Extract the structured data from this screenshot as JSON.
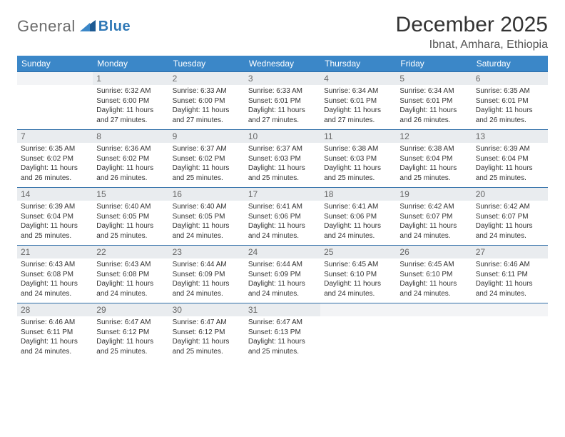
{
  "brand": {
    "part1": "General",
    "part2": "Blue"
  },
  "title": "December 2025",
  "location": "Ibnat, Amhara, Ethiopia",
  "colors": {
    "header_bg": "#3b87c8",
    "header_fg": "#ffffff",
    "daynum_bg": "#e9ecef",
    "row_border": "#2f6ea8",
    "logo_gray": "#6b6b6b",
    "logo_blue": "#2f78b6"
  },
  "day_names": [
    "Sunday",
    "Monday",
    "Tuesday",
    "Wednesday",
    "Thursday",
    "Friday",
    "Saturday"
  ],
  "weeks": [
    [
      {
        "blank": true
      },
      {
        "n": "1",
        "sr": "6:32 AM",
        "ss": "6:00 PM",
        "dl": "11 hours and 27 minutes."
      },
      {
        "n": "2",
        "sr": "6:33 AM",
        "ss": "6:00 PM",
        "dl": "11 hours and 27 minutes."
      },
      {
        "n": "3",
        "sr": "6:33 AM",
        "ss": "6:01 PM",
        "dl": "11 hours and 27 minutes."
      },
      {
        "n": "4",
        "sr": "6:34 AM",
        "ss": "6:01 PM",
        "dl": "11 hours and 27 minutes."
      },
      {
        "n": "5",
        "sr": "6:34 AM",
        "ss": "6:01 PM",
        "dl": "11 hours and 26 minutes."
      },
      {
        "n": "6",
        "sr": "6:35 AM",
        "ss": "6:01 PM",
        "dl": "11 hours and 26 minutes."
      }
    ],
    [
      {
        "n": "7",
        "sr": "6:35 AM",
        "ss": "6:02 PM",
        "dl": "11 hours and 26 minutes."
      },
      {
        "n": "8",
        "sr": "6:36 AM",
        "ss": "6:02 PM",
        "dl": "11 hours and 26 minutes."
      },
      {
        "n": "9",
        "sr": "6:37 AM",
        "ss": "6:02 PM",
        "dl": "11 hours and 25 minutes."
      },
      {
        "n": "10",
        "sr": "6:37 AM",
        "ss": "6:03 PM",
        "dl": "11 hours and 25 minutes."
      },
      {
        "n": "11",
        "sr": "6:38 AM",
        "ss": "6:03 PM",
        "dl": "11 hours and 25 minutes."
      },
      {
        "n": "12",
        "sr": "6:38 AM",
        "ss": "6:04 PM",
        "dl": "11 hours and 25 minutes."
      },
      {
        "n": "13",
        "sr": "6:39 AM",
        "ss": "6:04 PM",
        "dl": "11 hours and 25 minutes."
      }
    ],
    [
      {
        "n": "14",
        "sr": "6:39 AM",
        "ss": "6:04 PM",
        "dl": "11 hours and 25 minutes."
      },
      {
        "n": "15",
        "sr": "6:40 AM",
        "ss": "6:05 PM",
        "dl": "11 hours and 25 minutes."
      },
      {
        "n": "16",
        "sr": "6:40 AM",
        "ss": "6:05 PM",
        "dl": "11 hours and 24 minutes."
      },
      {
        "n": "17",
        "sr": "6:41 AM",
        "ss": "6:06 PM",
        "dl": "11 hours and 24 minutes."
      },
      {
        "n": "18",
        "sr": "6:41 AM",
        "ss": "6:06 PM",
        "dl": "11 hours and 24 minutes."
      },
      {
        "n": "19",
        "sr": "6:42 AM",
        "ss": "6:07 PM",
        "dl": "11 hours and 24 minutes."
      },
      {
        "n": "20",
        "sr": "6:42 AM",
        "ss": "6:07 PM",
        "dl": "11 hours and 24 minutes."
      }
    ],
    [
      {
        "n": "21",
        "sr": "6:43 AM",
        "ss": "6:08 PM",
        "dl": "11 hours and 24 minutes."
      },
      {
        "n": "22",
        "sr": "6:43 AM",
        "ss": "6:08 PM",
        "dl": "11 hours and 24 minutes."
      },
      {
        "n": "23",
        "sr": "6:44 AM",
        "ss": "6:09 PM",
        "dl": "11 hours and 24 minutes."
      },
      {
        "n": "24",
        "sr": "6:44 AM",
        "ss": "6:09 PM",
        "dl": "11 hours and 24 minutes."
      },
      {
        "n": "25",
        "sr": "6:45 AM",
        "ss": "6:10 PM",
        "dl": "11 hours and 24 minutes."
      },
      {
        "n": "26",
        "sr": "6:45 AM",
        "ss": "6:10 PM",
        "dl": "11 hours and 24 minutes."
      },
      {
        "n": "27",
        "sr": "6:46 AM",
        "ss": "6:11 PM",
        "dl": "11 hours and 24 minutes."
      }
    ],
    [
      {
        "n": "28",
        "sr": "6:46 AM",
        "ss": "6:11 PM",
        "dl": "11 hours and 24 minutes."
      },
      {
        "n": "29",
        "sr": "6:47 AM",
        "ss": "6:12 PM",
        "dl": "11 hours and 25 minutes."
      },
      {
        "n": "30",
        "sr": "6:47 AM",
        "ss": "6:12 PM",
        "dl": "11 hours and 25 minutes."
      },
      {
        "n": "31",
        "sr": "6:47 AM",
        "ss": "6:13 PM",
        "dl": "11 hours and 25 minutes."
      },
      {
        "blank": true
      },
      {
        "blank": true
      },
      {
        "blank": true
      }
    ]
  ],
  "labels": {
    "sunrise": "Sunrise:",
    "sunset": "Sunset:",
    "daylight": "Daylight:"
  }
}
